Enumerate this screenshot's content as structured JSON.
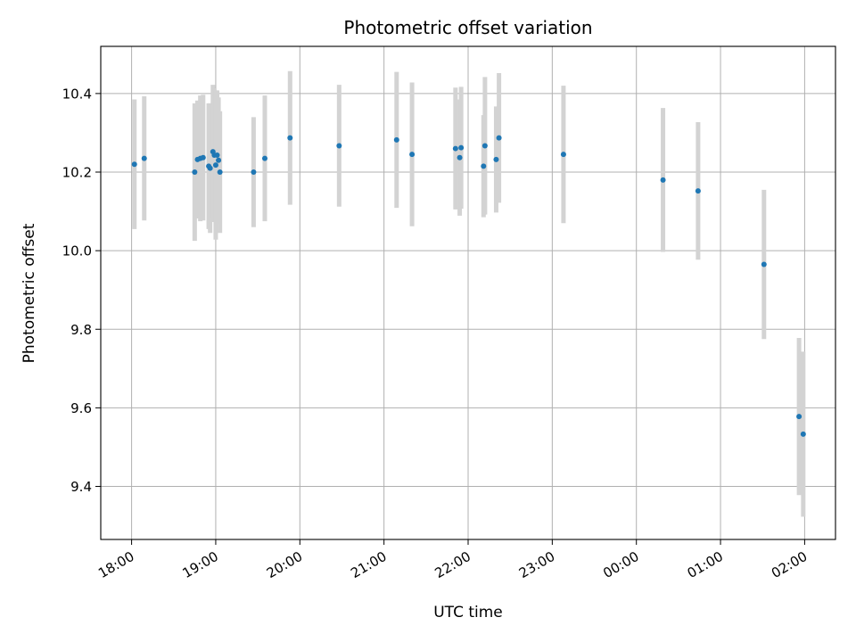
{
  "chart_data": {
    "type": "scatter",
    "title": "Photometric offset variation",
    "xlabel": "UTC time",
    "ylabel": "Photometric offset",
    "x_tick_labels": [
      "18:00",
      "19:00",
      "20:00",
      "21:00",
      "22:00",
      "23:00",
      "00:00",
      "01:00",
      "02:00"
    ],
    "y_tick_labels": [
      "9.4",
      "9.6",
      "9.8",
      "10.0",
      "10.2",
      "10.4"
    ],
    "xlim": [
      "17:38",
      "02:22"
    ],
    "ylim": [
      9.265,
      10.52
    ],
    "grid": true,
    "marker_color": "#1f77b4",
    "errorbar_color": "#d3d3d3",
    "points": [
      {
        "t": "18:02",
        "y": 10.22,
        "err": 0.165
      },
      {
        "t": "18:09",
        "y": 10.235,
        "err": 0.158
      },
      {
        "t": "18:45",
        "y": 10.2,
        "err": 0.175
      },
      {
        "t": "18:47",
        "y": 10.232,
        "err": 0.15
      },
      {
        "t": "18:49",
        "y": 10.235,
        "err": 0.16
      },
      {
        "t": "18:51",
        "y": 10.237,
        "err": 0.16
      },
      {
        "t": "18:55",
        "y": 10.215,
        "err": 0.16
      },
      {
        "t": "18:56",
        "y": 10.21,
        "err": 0.165
      },
      {
        "t": "18:58",
        "y": 10.252,
        "err": 0.17
      },
      {
        "t": "18:59",
        "y": 10.243,
        "err": 0.17
      },
      {
        "t": "19:00",
        "y": 10.218,
        "err": 0.19
      },
      {
        "t": "19:01",
        "y": 10.243,
        "err": 0.165
      },
      {
        "t": "19:02",
        "y": 10.23,
        "err": 0.16
      },
      {
        "t": "19:03",
        "y": 10.2,
        "err": 0.155
      },
      {
        "t": "19:27",
        "y": 10.2,
        "err": 0.14
      },
      {
        "t": "19:35",
        "y": 10.235,
        "err": 0.16
      },
      {
        "t": "19:53",
        "y": 10.287,
        "err": 0.17
      },
      {
        "t": "20:28",
        "y": 10.267,
        "err": 0.155
      },
      {
        "t": "21:09",
        "y": 10.282,
        "err": 0.173
      },
      {
        "t": "21:20",
        "y": 10.245,
        "err": 0.183
      },
      {
        "t": "21:51",
        "y": 10.26,
        "err": 0.155
      },
      {
        "t": "21:54",
        "y": 10.237,
        "err": 0.148
      },
      {
        "t": "21:55",
        "y": 10.262,
        "err": 0.155
      },
      {
        "t": "22:11",
        "y": 10.215,
        "err": 0.13
      },
      {
        "t": "22:12",
        "y": 10.267,
        "err": 0.175
      },
      {
        "t": "22:20",
        "y": 10.232,
        "err": 0.135
      },
      {
        "t": "22:22",
        "y": 10.287,
        "err": 0.165
      },
      {
        "t": "23:08",
        "y": 10.245,
        "err": 0.175
      },
      {
        "t": "00:19",
        "y": 10.18,
        "err": 0.183
      },
      {
        "t": "00:44",
        "y": 10.152,
        "err": 0.175
      },
      {
        "t": "01:31",
        "y": 9.965,
        "err": 0.19
      },
      {
        "t": "01:56",
        "y": 9.578,
        "err": 0.2
      },
      {
        "t": "01:59",
        "y": 9.533,
        "err": 0.21
      }
    ]
  }
}
